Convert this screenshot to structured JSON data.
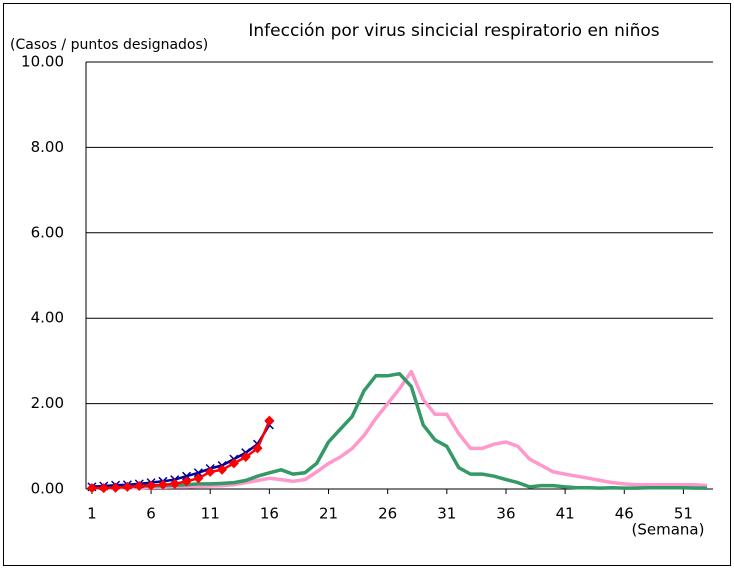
{
  "chart_data": {
    "type": "line",
    "title": "Infección por virus sincicial respiratorio en niños",
    "y_label": "(Casos / puntos designados)",
    "x_label": "(Semana)",
    "categories": [
      1,
      null,
      null,
      null,
      null,
      6,
      null,
      null,
      null,
      null,
      11,
      null,
      null,
      null,
      null,
      16,
      null,
      null,
      null,
      null,
      21,
      null,
      null,
      null,
      null,
      26,
      null,
      null,
      null,
      null,
      31,
      null,
      null,
      null,
      null,
      36,
      null,
      null,
      null,
      null,
      41,
      null,
      null,
      null,
      null,
      46,
      null,
      null,
      null,
      null,
      51,
      null,
      null
    ],
    "ylim": [
      0,
      10
    ],
    "yticks": [
      {
        "value": 0,
        "label": "0.00"
      },
      {
        "value": 2,
        "label": "2.00"
      },
      {
        "value": 4,
        "label": "4.00"
      },
      {
        "value": 6,
        "label": "6.00"
      },
      {
        "value": 8,
        "label": "8.00"
      },
      {
        "value": 10,
        "label": "10.00"
      }
    ],
    "grid": true,
    "series": [
      {
        "color": "#ff99cc",
        "marker": "none",
        "values": [
          0.03,
          0.03,
          0.03,
          0.03,
          0.03,
          0.04,
          0.04,
          0.05,
          0.05,
          0.06,
          0.07,
          0.08,
          0.1,
          0.15,
          0.2,
          0.25,
          0.22,
          0.18,
          0.22,
          0.4,
          0.6,
          0.75,
          0.95,
          1.25,
          1.65,
          2.0,
          2.35,
          2.75,
          2.1,
          1.75,
          1.75,
          1.3,
          0.95,
          0.95,
          1.05,
          1.1,
          1.0,
          0.7,
          0.55,
          0.4,
          0.35,
          0.3,
          0.25,
          0.2,
          0.15,
          0.12,
          0.1,
          0.1,
          0.1,
          0.1,
          0.1,
          0.1,
          0.08
        ]
      },
      {
        "color": "#339966",
        "marker": "none",
        "values": [
          0.05,
          0.05,
          0.06,
          0.06,
          0.07,
          0.07,
          0.08,
          0.09,
          0.1,
          0.12,
          0.12,
          0.13,
          0.15,
          0.2,
          0.3,
          0.38,
          0.45,
          0.35,
          0.38,
          0.6,
          1.1,
          1.4,
          1.7,
          2.3,
          2.65,
          2.65,
          2.7,
          2.4,
          1.5,
          1.15,
          1.0,
          0.5,
          0.35,
          0.35,
          0.3,
          0.22,
          0.15,
          0.05,
          0.08,
          0.08,
          0.05,
          0.03,
          0.03,
          0.02,
          0.03,
          0.02,
          0.02,
          0.03,
          0.03,
          0.03,
          0.03,
          0.02,
          0.02
        ]
      },
      {
        "color": "#000099",
        "marker": "x",
        "values": [
          0.05,
          0.07,
          0.09,
          0.1,
          0.12,
          0.15,
          0.18,
          0.22,
          0.3,
          0.38,
          0.48,
          0.55,
          0.7,
          0.85,
          1.05,
          1.5,
          null,
          null,
          null,
          null,
          null,
          null,
          null,
          null,
          null,
          null,
          null,
          null,
          null,
          null,
          null,
          null,
          null,
          null,
          null,
          null,
          null,
          null,
          null,
          null,
          null,
          null,
          null,
          null,
          null,
          null,
          null,
          null,
          null,
          null,
          null,
          null,
          null
        ]
      },
      {
        "color": "#ff0000",
        "marker": "diamond",
        "values": [
          0.02,
          0.02,
          0.03,
          0.05,
          0.07,
          0.08,
          0.1,
          0.12,
          0.18,
          0.25,
          0.4,
          0.45,
          0.6,
          0.75,
          0.95,
          1.6,
          null,
          null,
          null,
          null,
          null,
          null,
          null,
          null,
          null,
          null,
          null,
          null,
          null,
          null,
          null,
          null,
          null,
          null,
          null,
          null,
          null,
          null,
          null,
          null,
          null,
          null,
          null,
          null,
          null,
          null,
          null,
          null,
          null,
          null,
          null,
          null,
          null
        ]
      }
    ]
  }
}
